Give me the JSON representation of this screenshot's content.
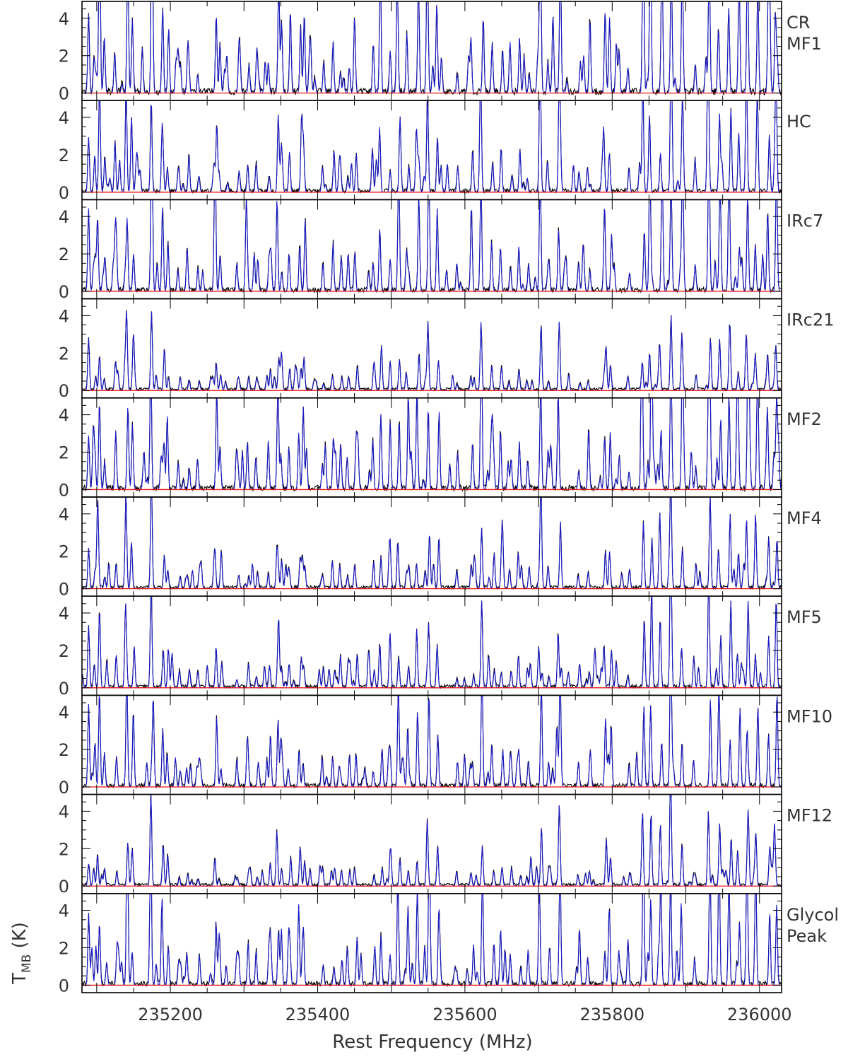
{
  "chart_data": {
    "type": "line",
    "xlabel": "Rest Frequency (MHz)",
    "ylabel_main": "T",
    "ylabel_sub": "MB",
    "ylabel_unit": "(K)",
    "xlim": [
      235080,
      236030
    ],
    "ylim": [
      -0.4,
      4.9
    ],
    "x_ticks": [
      235200,
      235400,
      235600,
      235800,
      236000
    ],
    "x_tick_labels": [
      "235200",
      "235400",
      "235600",
      "235800",
      "236000"
    ],
    "y_ticks": [
      0,
      2,
      4
    ],
    "y_tick_labels": [
      "0",
      "2",
      "4"
    ],
    "colors": {
      "observed": "#000000",
      "model": "#1a1acc",
      "baseline": "#e8140f",
      "frame": "#000000"
    },
    "series": [
      {
        "name": "observed spectrum",
        "color": "#000000"
      },
      {
        "name": "model spectrum",
        "color": "#1a1acc"
      },
      {
        "name": "baseline",
        "color": "#e8140f"
      }
    ],
    "panels": [
      {
        "label": [
          "CR",
          "MF1"
        ],
        "scale": 1.6,
        "seed": 11
      },
      {
        "label": [
          "HC"
        ],
        "scale": 1.0,
        "seed": 23
      },
      {
        "label": [
          "IRc7"
        ],
        "scale": 1.15,
        "seed": 37
      },
      {
        "label": [
          "IRc21"
        ],
        "scale": 0.55,
        "seed": 41
      },
      {
        "label": [
          "MF2"
        ],
        "scale": 1.45,
        "seed": 53
      },
      {
        "label": [
          "MF4"
        ],
        "scale": 0.75,
        "seed": 67
      },
      {
        "label": [
          "MF5"
        ],
        "scale": 0.8,
        "seed": 71
      },
      {
        "label": [
          "MF10"
        ],
        "scale": 1.0,
        "seed": 83
      },
      {
        "label": [
          "MF12"
        ],
        "scale": 0.6,
        "seed": 97
      },
      {
        "label": [
          "Glycol",
          "Peak"
        ],
        "scale": 1.2,
        "seed": 101
      }
    ],
    "lines_mhz": [
      [
        235090,
        3.5
      ],
      [
        235097,
        2.0
      ],
      [
        235103,
        4.5
      ],
      [
        235112,
        1.6
      ],
      [
        235126,
        2.0
      ],
      [
        235141,
        6.0
      ],
      [
        235149,
        3.0
      ],
      [
        235175,
        7.0
      ],
      [
        235190,
        3.0
      ],
      [
        235197,
        2.5
      ],
      [
        235212,
        1.2
      ],
      [
        235224,
        1.5
      ],
      [
        235238,
        1.0
      ],
      [
        235262,
        5.0
      ],
      [
        235268,
        1.2
      ],
      [
        235292,
        1.1
      ],
      [
        235305,
        1.8
      ],
      [
        235318,
        1.2
      ],
      [
        235335,
        1.5
      ],
      [
        235346,
        3.0
      ],
      [
        235352,
        1.8
      ],
      [
        235362,
        2.0
      ],
      [
        235376,
        3.5
      ],
      [
        235382,
        2.5
      ],
      [
        235408,
        1.2
      ],
      [
        235422,
        1.6
      ],
      [
        235431,
        1.3
      ],
      [
        235442,
        1.4
      ],
      [
        235452,
        2.2
      ],
      [
        235476,
        1.6
      ],
      [
        235486,
        3.0
      ],
      [
        235500,
        2.2
      ],
      [
        235510,
        4.0
      ],
      [
        235522,
        2.5
      ],
      [
        235536,
        3.2
      ],
      [
        235550,
        4.6
      ],
      [
        235563,
        2.8
      ],
      [
        235590,
        1.0
      ],
      [
        235610,
        1.6
      ],
      [
        235623,
        5.0
      ],
      [
        235638,
        2.0
      ],
      [
        235650,
        1.8
      ],
      [
        235662,
        1.2
      ],
      [
        235674,
        1.6
      ],
      [
        235686,
        1.2
      ],
      [
        235702,
        5.5
      ],
      [
        235714,
        1.2
      ],
      [
        235728,
        5.0
      ],
      [
        235755,
        1.0
      ],
      [
        235768,
        1.0
      ],
      [
        235790,
        3.0
      ],
      [
        235798,
        2.2
      ],
      [
        235822,
        1.2
      ],
      [
        235842,
        5.5
      ],
      [
        235852,
        6.0
      ],
      [
        235866,
        4.0
      ],
      [
        235880,
        8.0
      ],
      [
        235894,
        4.0
      ],
      [
        235912,
        1.5
      ],
      [
        235932,
        6.0
      ],
      [
        235946,
        4.5
      ],
      [
        235960,
        5.0
      ],
      [
        235972,
        3.0
      ],
      [
        235984,
        5.5
      ],
      [
        235996,
        4.0
      ],
      [
        236012,
        3.0
      ],
      [
        236022,
        4.2
      ]
    ]
  }
}
